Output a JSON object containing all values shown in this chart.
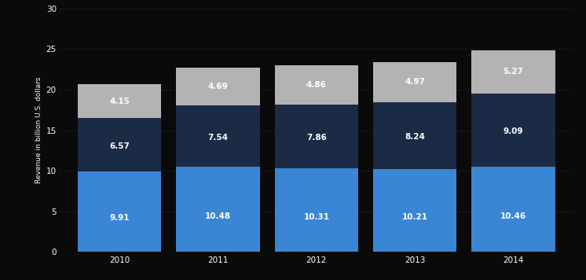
{
  "years": [
    "2010",
    "2011",
    "2012",
    "2013",
    "2014"
  ],
  "bottom_values": [
    9.91,
    10.48,
    10.31,
    10.21,
    10.46
  ],
  "middle_values": [
    6.57,
    7.54,
    7.86,
    8.24,
    9.09
  ],
  "top_values": [
    4.15,
    4.69,
    4.86,
    4.97,
    5.27
  ],
  "bottom_color": "#3a86d4",
  "middle_color": "#1b2a45",
  "top_color": "#b3b3b3",
  "background_color": "#0a0a0a",
  "text_color": "#ffffff",
  "ylabel": "Revenue in billion U.S. dollars",
  "ylim": [
    0,
    30
  ],
  "yticks": [
    0,
    5,
    10,
    15,
    20,
    25,
    30
  ],
  "bar_width": 0.85,
  "label_fontsize": 7.5,
  "axis_label_fontsize": 6.5,
  "tick_fontsize": 7.5,
  "grid_color": "#444444"
}
